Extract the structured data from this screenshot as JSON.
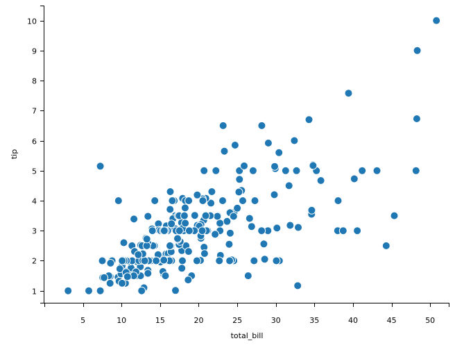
{
  "chart_data": {
    "type": "scatter",
    "xlabel": "total_bill",
    "ylabel": "tip",
    "xlim": [
      0,
      52.5
    ],
    "ylim": [
      0.6,
      10.5
    ],
    "xticks": [
      5,
      10,
      15,
      20,
      25,
      30,
      35,
      40,
      45,
      50
    ],
    "yticks": [
      1,
      2,
      3,
      4,
      5,
      6,
      7,
      8,
      9,
      10
    ],
    "grid": false,
    "marker_color": "#1f77b4",
    "marker_edge": "#ffffff",
    "series": [
      {
        "points": [
          [
            16.99,
            1.01
          ],
          [
            10.34,
            1.66
          ],
          [
            21.01,
            3.5
          ],
          [
            23.68,
            3.31
          ],
          [
            24.59,
            3.61
          ],
          [
            25.29,
            4.71
          ],
          [
            8.77,
            2.0
          ],
          [
            26.88,
            3.12
          ],
          [
            15.04,
            1.96
          ],
          [
            14.78,
            3.23
          ],
          [
            10.27,
            1.71
          ],
          [
            35.26,
            5.0
          ],
          [
            15.42,
            1.57
          ],
          [
            18.43,
            3.0
          ],
          [
            14.83,
            3.02
          ],
          [
            21.58,
            3.92
          ],
          [
            10.33,
            1.67
          ],
          [
            16.29,
            3.71
          ],
          [
            16.97,
            3.5
          ],
          [
            20.65,
            3.35
          ],
          [
            17.92,
            4.08
          ],
          [
            20.29,
            2.75
          ],
          [
            15.77,
            2.23
          ],
          [
            39.42,
            7.58
          ],
          [
            19.82,
            3.18
          ],
          [
            17.81,
            2.34
          ],
          [
            13.37,
            2.0
          ],
          [
            12.69,
            2.0
          ],
          [
            21.7,
            4.3
          ],
          [
            19.65,
            3.0
          ],
          [
            9.55,
            1.45
          ],
          [
            18.35,
            2.5
          ],
          [
            15.06,
            3.0
          ],
          [
            20.69,
            2.45
          ],
          [
            17.78,
            3.27
          ],
          [
            24.06,
            3.6
          ],
          [
            16.31,
            2.0
          ],
          [
            16.93,
            3.07
          ],
          [
            18.69,
            2.31
          ],
          [
            31.27,
            5.0
          ],
          [
            16.04,
            2.24
          ],
          [
            17.46,
            2.54
          ],
          [
            13.94,
            3.06
          ],
          [
            9.68,
            1.32
          ],
          [
            30.4,
            5.6
          ],
          [
            18.29,
            3.0
          ],
          [
            22.23,
            5.0
          ],
          [
            32.4,
            6.0
          ],
          [
            28.55,
            2.05
          ],
          [
            18.04,
            3.0
          ],
          [
            12.54,
            2.5
          ],
          [
            10.29,
            2.6
          ],
          [
            34.81,
            5.2
          ],
          [
            9.94,
            1.56
          ],
          [
            25.56,
            4.34
          ],
          [
            19.49,
            3.51
          ],
          [
            38.01,
            3.0
          ],
          [
            26.41,
            1.5
          ],
          [
            11.24,
            1.76
          ],
          [
            48.27,
            6.73
          ],
          [
            20.29,
            3.21
          ],
          [
            13.81,
            2.0
          ],
          [
            11.02,
            1.98
          ],
          [
            18.29,
            3.76
          ],
          [
            17.59,
            2.64
          ],
          [
            20.08,
            3.15
          ],
          [
            16.45,
            2.47
          ],
          [
            3.07,
            1.0
          ],
          [
            20.23,
            2.01
          ],
          [
            15.01,
            2.09
          ],
          [
            12.02,
            1.97
          ],
          [
            17.07,
            3.0
          ],
          [
            26.86,
            3.14
          ],
          [
            25.28,
            5.0
          ],
          [
            14.73,
            2.2
          ],
          [
            10.51,
            1.25
          ],
          [
            17.92,
            3.08
          ],
          [
            27.2,
            4.0
          ],
          [
            22.76,
            3.0
          ],
          [
            17.29,
            2.71
          ],
          [
            19.44,
            3.0
          ],
          [
            16.66,
            3.4
          ],
          [
            10.07,
            1.83
          ],
          [
            32.68,
            5.0
          ],
          [
            15.98,
            2.03
          ],
          [
            34.83,
            5.17
          ],
          [
            13.03,
            2.0
          ],
          [
            18.28,
            4.0
          ],
          [
            24.71,
            5.85
          ],
          [
            21.16,
            3.0
          ],
          [
            28.97,
            3.0
          ],
          [
            22.49,
            3.5
          ],
          [
            5.75,
            1.0
          ],
          [
            16.32,
            4.3
          ],
          [
            22.75,
            3.25
          ],
          [
            40.17,
            4.73
          ],
          [
            27.28,
            4.0
          ],
          [
            12.03,
            1.5
          ],
          [
            21.01,
            3.0
          ],
          [
            12.46,
            1.5
          ],
          [
            11.35,
            2.5
          ],
          [
            15.38,
            3.0
          ],
          [
            44.3,
            2.5
          ],
          [
            22.42,
            3.48
          ],
          [
            20.92,
            4.08
          ],
          [
            15.36,
            1.64
          ],
          [
            20.49,
            4.06
          ],
          [
            25.21,
            4.29
          ],
          [
            18.24,
            3.76
          ],
          [
            14.31,
            4.0
          ],
          [
            14.0,
            3.0
          ],
          [
            7.25,
            1.0
          ],
          [
            38.07,
            4.0
          ],
          [
            23.95,
            2.55
          ],
          [
            25.71,
            4.0
          ],
          [
            17.31,
            3.5
          ],
          [
            29.93,
            5.07
          ],
          [
            10.65,
            1.5
          ],
          [
            12.43,
            1.8
          ],
          [
            24.08,
            2.92
          ],
          [
            11.69,
            2.31
          ],
          [
            13.42,
            1.68
          ],
          [
            14.26,
            2.5
          ],
          [
            15.95,
            2.0
          ],
          [
            12.48,
            2.52
          ],
          [
            29.8,
            4.2
          ],
          [
            8.52,
            1.48
          ],
          [
            14.52,
            2.0
          ],
          [
            11.38,
            2.0
          ],
          [
            22.82,
            2.18
          ],
          [
            19.08,
            1.5
          ],
          [
            20.27,
            2.83
          ],
          [
            11.17,
            1.5
          ],
          [
            12.26,
            2.0
          ],
          [
            18.26,
            3.25
          ],
          [
            8.51,
            1.25
          ],
          [
            10.33,
            2.0
          ],
          [
            14.15,
            2.0
          ],
          [
            16.0,
            2.0
          ],
          [
            13.16,
            2.75
          ],
          [
            17.47,
            3.5
          ],
          [
            34.3,
            6.7
          ],
          [
            41.19,
            5.0
          ],
          [
            27.05,
            5.0
          ],
          [
            16.43,
            2.3
          ],
          [
            8.35,
            1.5
          ],
          [
            18.64,
            1.36
          ],
          [
            11.87,
            1.63
          ],
          [
            9.78,
            1.73
          ],
          [
            7.51,
            2.0
          ],
          [
            14.07,
            2.5
          ],
          [
            13.13,
            2.0
          ],
          [
            17.26,
            2.74
          ],
          [
            24.55,
            2.0
          ],
          [
            19.77,
            2.0
          ],
          [
            29.85,
            5.14
          ],
          [
            48.17,
            5.0
          ],
          [
            25.0,
            3.75
          ],
          [
            13.39,
            2.61
          ],
          [
            16.49,
            2.0
          ],
          [
            21.5,
            3.5
          ],
          [
            12.66,
            2.5
          ],
          [
            16.21,
            2.0
          ],
          [
            13.81,
            2.0
          ],
          [
            17.51,
            3.0
          ],
          [
            24.52,
            3.48
          ],
          [
            20.76,
            2.24
          ],
          [
            31.71,
            4.5
          ],
          [
            10.59,
            1.61
          ],
          [
            10.63,
            2.0
          ],
          [
            50.81,
            10.0
          ],
          [
            15.81,
            3.16
          ],
          [
            7.25,
            5.15
          ],
          [
            31.85,
            3.18
          ],
          [
            16.82,
            4.0
          ],
          [
            32.9,
            3.11
          ],
          [
            17.89,
            2.0
          ],
          [
            14.48,
            2.0
          ],
          [
            9.6,
            4.0
          ],
          [
            34.63,
            3.55
          ],
          [
            34.65,
            3.68
          ],
          [
            23.33,
            5.65
          ],
          [
            45.35,
            3.5
          ],
          [
            23.17,
            6.5
          ],
          [
            40.55,
            3.0
          ],
          [
            20.69,
            5.0
          ],
          [
            20.9,
            3.5
          ],
          [
            30.46,
            2.0
          ],
          [
            18.15,
            3.5
          ],
          [
            23.1,
            4.0
          ],
          [
            15.69,
            1.5
          ],
          [
            19.81,
            4.19
          ],
          [
            28.44,
            2.56
          ],
          [
            15.48,
            2.02
          ],
          [
            16.58,
            4.0
          ],
          [
            7.56,
            1.44
          ],
          [
            10.34,
            2.0
          ],
          [
            43.11,
            5.0
          ],
          [
            13.0,
            2.0
          ],
          [
            13.51,
            2.0
          ],
          [
            18.71,
            4.0
          ],
          [
            12.74,
            2.01
          ],
          [
            13.0,
            2.0
          ],
          [
            16.4,
            2.5
          ],
          [
            20.53,
            4.0
          ],
          [
            16.47,
            3.23
          ],
          [
            26.59,
            3.41
          ],
          [
            38.73,
            3.0
          ],
          [
            24.27,
            2.03
          ],
          [
            12.76,
            2.23
          ],
          [
            30.06,
            2.0
          ],
          [
            25.89,
            5.16
          ],
          [
            48.33,
            9.0
          ],
          [
            13.27,
            2.5
          ],
          [
            28.17,
            6.5
          ],
          [
            12.9,
            1.1
          ],
          [
            28.15,
            3.0
          ],
          [
            11.59,
            1.5
          ],
          [
            7.74,
            1.44
          ],
          [
            30.14,
            3.09
          ],
          [
            12.16,
            2.2
          ],
          [
            13.42,
            3.48
          ],
          [
            8.58,
            1.92
          ],
          [
            15.98,
            3.0
          ],
          [
            13.42,
            1.58
          ],
          [
            16.27,
            2.5
          ],
          [
            10.09,
            2.0
          ],
          [
            20.45,
            3.0
          ],
          [
            13.28,
            2.72
          ],
          [
            22.12,
            2.88
          ],
          [
            24.01,
            2.0
          ],
          [
            15.69,
            3.0
          ],
          [
            11.61,
            3.39
          ],
          [
            10.77,
            1.47
          ],
          [
            15.53,
            3.0
          ],
          [
            10.07,
            1.25
          ],
          [
            12.6,
            1.0
          ],
          [
            32.83,
            1.17
          ],
          [
            35.83,
            4.67
          ],
          [
            29.03,
            5.92
          ],
          [
            27.18,
            2.0
          ],
          [
            22.67,
            2.0
          ],
          [
            17.82,
            1.75
          ],
          [
            18.78,
            3.0
          ]
        ]
      }
    ]
  }
}
